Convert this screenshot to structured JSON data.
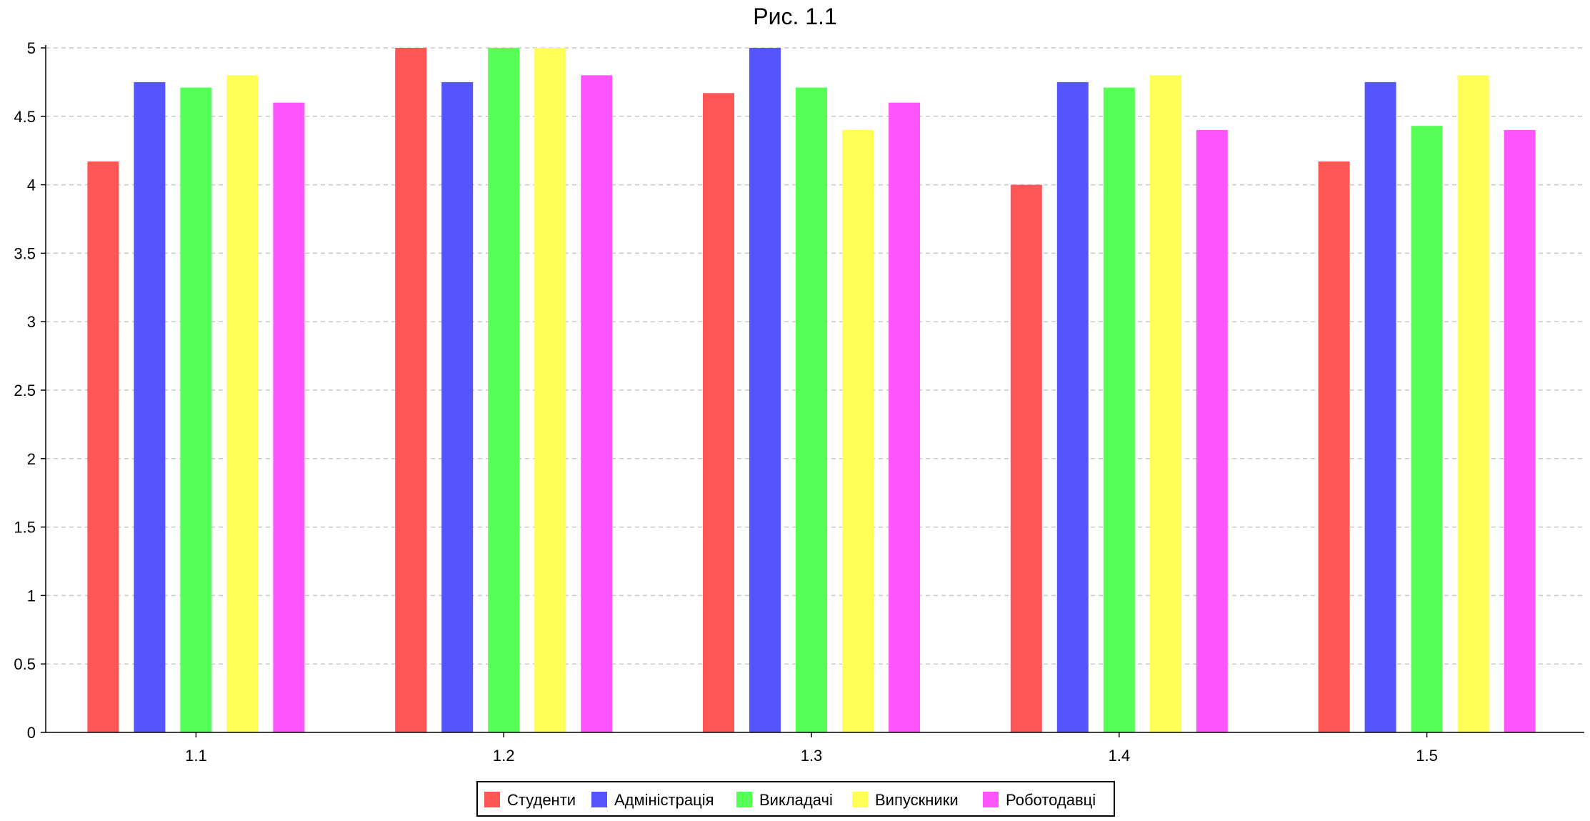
{
  "chart_data": {
    "type": "bar",
    "title": "Рис. 1.1",
    "xlabel": "",
    "ylabel": "",
    "categories": [
      "1.1",
      "1.2",
      "1.3",
      "1.4",
      "1.5"
    ],
    "ylim": [
      0,
      5
    ],
    "yticks": [
      "0",
      "0.5",
      "1",
      "1.5",
      "2",
      "2.5",
      "3",
      "3.5",
      "4",
      "4.5",
      "5"
    ],
    "grid": true,
    "legend_position": "bottom-center",
    "series": [
      {
        "name": "Студенти",
        "color": "#ff5555",
        "values": [
          4.17,
          5.0,
          4.67,
          4.0,
          4.17
        ]
      },
      {
        "name": "Адміністрація",
        "color": "#5555ff",
        "values": [
          4.75,
          4.75,
          5.0,
          4.75,
          4.75
        ]
      },
      {
        "name": "Викладачі",
        "color": "#55ff55",
        "values": [
          4.71,
          5.0,
          4.71,
          4.71,
          4.43
        ]
      },
      {
        "name": "Випускники",
        "color": "#ffff55",
        "values": [
          4.8,
          5.0,
          4.4,
          4.8,
          4.8
        ]
      },
      {
        "name": "Роботодавці",
        "color": "#ff55ff",
        "values": [
          4.6,
          4.8,
          4.6,
          4.4,
          4.4
        ]
      }
    ]
  }
}
